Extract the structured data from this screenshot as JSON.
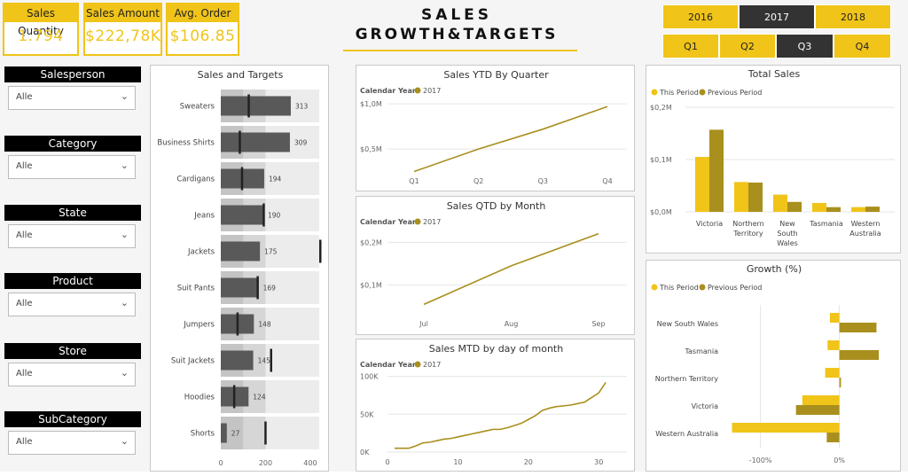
{
  "kpis": [
    {
      "label": "Sales Quantity",
      "value": "1.794"
    },
    {
      "label": "Sales Amount",
      "value": "$222,78K"
    },
    {
      "label": "Avg. Order",
      "value": "$106.85"
    }
  ],
  "title": {
    "line1": "SALES",
    "line2": "GROWTH&TARGETS"
  },
  "years": {
    "items": [
      "2016",
      "2017",
      "2018"
    ],
    "selected": "2017"
  },
  "quarters": {
    "items": [
      "Q1",
      "Q2",
      "Q3",
      "Q4"
    ],
    "selected": "Q3"
  },
  "filters": [
    {
      "label": "Salesperson",
      "value": "Alle"
    },
    {
      "label": "Category",
      "value": "Alle"
    },
    {
      "label": "State",
      "value": "Alle"
    },
    {
      "label": "Product",
      "value": "Alle"
    },
    {
      "label": "Store",
      "value": "Alle"
    },
    {
      "label": "SubCategory",
      "value": "Alle"
    }
  ],
  "colors": {
    "accent": "#f0c419",
    "accent_dark": "#a98f1d",
    "dark": "#333333",
    "bar": "#595959"
  },
  "chart_data": [
    {
      "id": "sales_targets",
      "type": "bar",
      "title": "Sales and Targets",
      "orientation": "horizontal",
      "categories": [
        "Sweaters",
        "Business Shirts",
        "Cardigans",
        "Jeans",
        "Jackets",
        "Suit Pants",
        "Jumpers",
        "Suit Jackets",
        "Hoodies",
        "Shorts"
      ],
      "values": [
        313,
        309,
        194,
        190,
        175,
        169,
        148,
        145,
        124,
        27
      ],
      "targets": [
        125,
        85,
        95,
        192,
        445,
        165,
        75,
        225,
        60,
        200
      ],
      "xticks": [
        0,
        200,
        400
      ],
      "xlim": [
        0,
        440
      ]
    },
    {
      "id": "ytd_quarter",
      "type": "line",
      "title": "Sales YTD By Quarter",
      "legend_title": "Calendar Year",
      "series": [
        {
          "name": "2017",
          "values": [
            0.25,
            0.5,
            0.72,
            0.97
          ]
        }
      ],
      "x": [
        "Q1",
        "Q2",
        "Q3",
        "Q4"
      ],
      "yticks": [
        "$0,5M",
        "$1,0M"
      ],
      "ytick_values": [
        0.5,
        1.0
      ],
      "ylim": [
        0,
        1.1
      ]
    },
    {
      "id": "qtd_month",
      "type": "line",
      "title": "Sales QTD by Month",
      "legend_title": "Calendar Year",
      "series": [
        {
          "name": "2017",
          "values": [
            0.055,
            0.145,
            0.22
          ]
        }
      ],
      "x": [
        "Jul",
        "Aug",
        "Sep"
      ],
      "yticks": [
        "$0,1M",
        "$0,2M"
      ],
      "ytick_values": [
        0.1,
        0.2
      ],
      "ylim": [
        0,
        0.24
      ]
    },
    {
      "id": "mtd_day",
      "type": "line",
      "title": "Sales MTD by day of month",
      "legend_title": "Calendar Year",
      "series": [
        {
          "name": "2017",
          "values": [
            5,
            5,
            5,
            8,
            12,
            13,
            15,
            17,
            18,
            20,
            22,
            24,
            26,
            28,
            30,
            30,
            32,
            35,
            38,
            43,
            48,
            55,
            58,
            60,
            61,
            62,
            64,
            66,
            72,
            78,
            92
          ]
        }
      ],
      "x": [
        1,
        2,
        3,
        4,
        5,
        6,
        7,
        8,
        9,
        10,
        11,
        12,
        13,
        14,
        15,
        16,
        17,
        18,
        19,
        20,
        21,
        22,
        23,
        24,
        25,
        26,
        27,
        28,
        29,
        30,
        31
      ],
      "xticks": [
        0,
        10,
        20,
        30
      ],
      "yticks": [
        "0K",
        "50K",
        "100K"
      ],
      "ytick_values": [
        0,
        50,
        100
      ],
      "ylim": [
        0,
        110
      ],
      "xlim": [
        0,
        34
      ]
    },
    {
      "id": "total_sales",
      "type": "bar",
      "title": "Total Sales",
      "categories": [
        "Victoria",
        "Northern Territory",
        "New South Wales",
        "Tasmania",
        "Western Australia"
      ],
      "category_lines": [
        [
          "Victoria"
        ],
        [
          "Northern",
          "Territory"
        ],
        [
          "New",
          "South",
          "Wales"
        ],
        [
          "Tasmania"
        ],
        [
          "Western",
          "Australia"
        ]
      ],
      "series": [
        {
          "name": "This Period",
          "values": [
            0.105,
            0.057,
            0.033,
            0.017,
            0.009
          ]
        },
        {
          "name": "Previous Period",
          "values": [
            0.157,
            0.056,
            0.019,
            0.009,
            0.01
          ]
        }
      ],
      "yticks": [
        "$0,0M",
        "$0,1M",
        "$0,2M"
      ],
      "ytick_values": [
        0,
        0.1,
        0.2
      ],
      "ylim": [
        0,
        0.2
      ]
    },
    {
      "id": "growth",
      "type": "bar",
      "title": "Growth (%)",
      "orientation": "horizontal",
      "categories": [
        "New South Wales",
        "Tasmania",
        "Northern Territory",
        "Victoria",
        "Western Australia"
      ],
      "series": [
        {
          "name": "This Period",
          "values": [
            -12,
            -15,
            -18,
            -47,
            -136
          ]
        },
        {
          "name": "Previous Period",
          "values": [
            47,
            50,
            2,
            -55,
            -16
          ]
        }
      ],
      "xticks": [
        "-100%",
        "0%"
      ],
      "xtick_values": [
        -100,
        0
      ],
      "xlim": [
        -140,
        60
      ]
    }
  ]
}
